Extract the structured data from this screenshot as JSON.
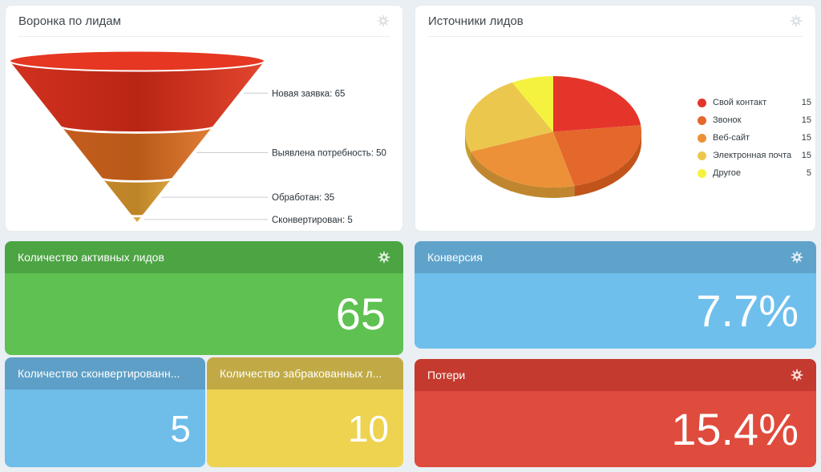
{
  "page_bg": "#eaeff3",
  "funnel": {
    "title": "Воронка по лидам",
    "top_color": "#e53722",
    "label_line_color": "#c9cdd1",
    "stages": [
      {
        "label": "Новая заявка",
        "value": 65
      },
      {
        "label": "Выявлена потребность",
        "value": 50
      },
      {
        "label": "Обработан",
        "value": 35
      },
      {
        "label": "Сконвертирован",
        "value": 5
      }
    ],
    "gradients": [
      [
        "#d23120",
        "#b92514",
        "#e2462e"
      ],
      [
        "#c45c1e",
        "#b85a18",
        "#e07d36"
      ],
      [
        "#c3862a",
        "#bd8426",
        "#d9a23e"
      ],
      [
        "#d8a53c",
        "#d8a53c"
      ]
    ]
  },
  "pie": {
    "title": "Источники лидов",
    "slices": [
      {
        "label": "Свой контакт",
        "value": 15,
        "color": "#e5352a",
        "rim": "#b2230f"
      },
      {
        "label": "Звонок",
        "value": 15,
        "color": "#e4672c",
        "rim": "#c1541b"
      },
      {
        "label": "Веб-сайт",
        "value": 15,
        "color": "#ec9138",
        "rim": "#c0862f"
      },
      {
        "label": "Электронная почта",
        "value": 15,
        "color": "#ecc74d",
        "rim": "#c59e2d"
      },
      {
        "label": "Другое",
        "value": 5,
        "color": "#f4f23f",
        "rim": "#c9c42a"
      }
    ]
  },
  "stats": {
    "active": {
      "title": "Количество активных лидов",
      "value": "65",
      "header_color": "#4ca443",
      "body_color": "#5ec151"
    },
    "converted": {
      "title": "Количество сконвертированн...",
      "value": "5",
      "header_color": "#5e9fc7",
      "body_color": "#6fbde9"
    },
    "rejected": {
      "title": "Количество забракованных л...",
      "value": "10",
      "header_color": "#c1aa45",
      "body_color": "#edd34f"
    },
    "conversion": {
      "title": "Конверсия",
      "value": "7.7%",
      "header_color": "#5fa3cb",
      "body_color": "#6fbfec"
    },
    "losses": {
      "title": "Потери",
      "value": "15.4%",
      "header_color": "#c53a2e",
      "body_color": "#df4b3c"
    }
  },
  "chart_data": [
    {
      "type": "funnel",
      "title": "Воронка по лидам",
      "categories": [
        "Новая заявка",
        "Выявлена потребность",
        "Обработан",
        "Сконвертирован"
      ],
      "values": [
        65,
        50,
        35,
        5
      ],
      "label_format": "name: value",
      "legend_position": "right-labels"
    },
    {
      "type": "pie",
      "title": "Источники лидов",
      "categories": [
        "Свой контакт",
        "Звонок",
        "Веб-сайт",
        "Электронная почта",
        "Другое"
      ],
      "values": [
        15,
        15,
        15,
        15,
        5
      ],
      "legend_position": "right",
      "style": "3d"
    }
  ]
}
